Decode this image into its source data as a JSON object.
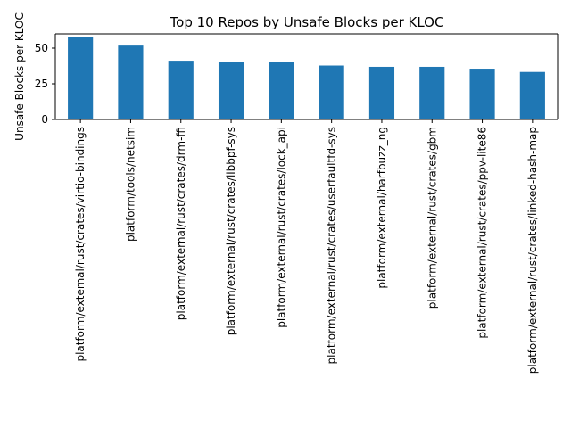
{
  "chart_data": {
    "type": "bar",
    "title": "Top 10 Repos by Unsafe Blocks per KLOC",
    "xlabel": "",
    "ylabel": "Unsafe Blocks per KLOC",
    "categories": [
      "platform/external/rust/crates/virtio-bindings",
      "platform/tools/netsim",
      "platform/external/rust/crates/drm-ffi",
      "platform/external/rust/crates/libbpf-sys",
      "platform/external/rust/crates/lock_api",
      "platform/external/rust/crates/userfaultfd-sys",
      "platform/external/harfbuzz_ng",
      "platform/external/rust/crates/gbm",
      "platform/external/rust/crates/ppv-lite86",
      "platform/external/rust/crates/linked-hash-map"
    ],
    "values": [
      57.5,
      51.8,
      41.2,
      40.6,
      40.4,
      37.8,
      36.9,
      36.9,
      35.6,
      33.3
    ],
    "ylim": [
      0,
      60
    ],
    "yticks": [
      0,
      25,
      50
    ],
    "grid": false,
    "legend": "none",
    "bar_color": "#1f77b4"
  }
}
